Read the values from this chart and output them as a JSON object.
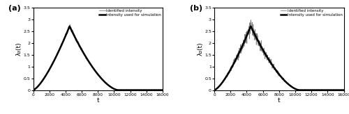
{
  "title_a": "(a)",
  "title_b": "(b)",
  "xlabel": "t",
  "ylabel_a": "λ₃(t)",
  "ylabel_b": "λ₃(t)",
  "xlim": [
    0,
    16000
  ],
  "ylim": [
    0,
    3.5
  ],
  "yticks": [
    0,
    0.5,
    1.0,
    1.5,
    2.0,
    2.5,
    3.0,
    3.5
  ],
  "ytick_labels": [
    "0",
    "0.5",
    "1",
    "1.5",
    "2",
    "2.5",
    "3",
    "3.5"
  ],
  "xticks": [
    0,
    2000,
    4000,
    6000,
    8000,
    10000,
    12000,
    14000,
    16000
  ],
  "xtick_labels": [
    "0",
    "2000",
    "4000",
    "6000",
    "8000",
    "10000",
    "12000",
    "14000",
    "16000"
  ],
  "legend_entries": [
    "Identified intensity",
    "Intensity used for simulation"
  ],
  "smooth_color": "black",
  "noisy_color": "#808080",
  "smooth_lw": 1.8,
  "noisy_lw": 0.6,
  "noise_a": 0.03,
  "noise_b": 0.1,
  "t_max": 16000,
  "n_points": 2000,
  "peak_t": 4500,
  "peak_val": 2.72,
  "rise_exp": 1.4,
  "fall_exp": 1.6,
  "decay_end": 10500
}
